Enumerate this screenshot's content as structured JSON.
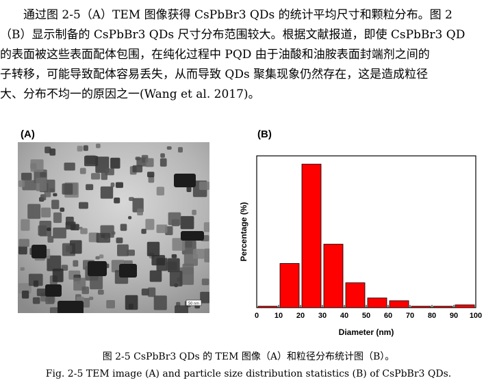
{
  "paragraph": [
    "　　通过图 2-5（A）TEM 图像获得 CsPbBr3 QDs 的统计平均尺寸和颗粒分布。图 2",
    "（B）显示制备的 CsPbBr3 QDs 尺寸分布范围较大。根据文献报道，即使 CsPbBr3 QD",
    "的表面被这些表面配体包围，在纯化过程中 PQD 由于油酸和油胺表面封端剂之间的",
    "子转移，可能导致配体容易丢失，从而导致 QDs 聚集现象仍然存在，这是造成粒径",
    "大、分布不均一的原因之一(Wang et al. 2017)。"
  ],
  "panel_a_label": "(A)",
  "panel_b_label": "(B)",
  "scale_bar_label": "50 nm",
  "caption_cn": "图 2-5 CsPbBr3 QDs 的 TEM 图像（A）和粒径分布统计图（B）。",
  "caption_en": "Fig. 2-5 TEM image (A) and particle size distribution statistics (B) of CsPbBr3 QDs.",
  "colors": {
    "bar": "#ff0000",
    "bar_edge": "#000000"
  },
  "chart_data": {
    "type": "bar",
    "title": "",
    "xlabel": "Diameter (nm)",
    "ylabel": "Percentage (%)",
    "xlim": [
      0,
      100
    ],
    "x_ticks": [
      0,
      10,
      20,
      30,
      40,
      50,
      60,
      70,
      80,
      90,
      100
    ],
    "y_ticks_shown": false,
    "categories": [
      "0-10",
      "10-20",
      "20-30",
      "30-40",
      "40-50",
      "50-60",
      "60-70",
      "70-80",
      "80-90",
      "90-100"
    ],
    "values": [
      0.5,
      16,
      52,
      23,
      9,
      3.5,
      2.5,
      0.5,
      0.5,
      1
    ]
  }
}
